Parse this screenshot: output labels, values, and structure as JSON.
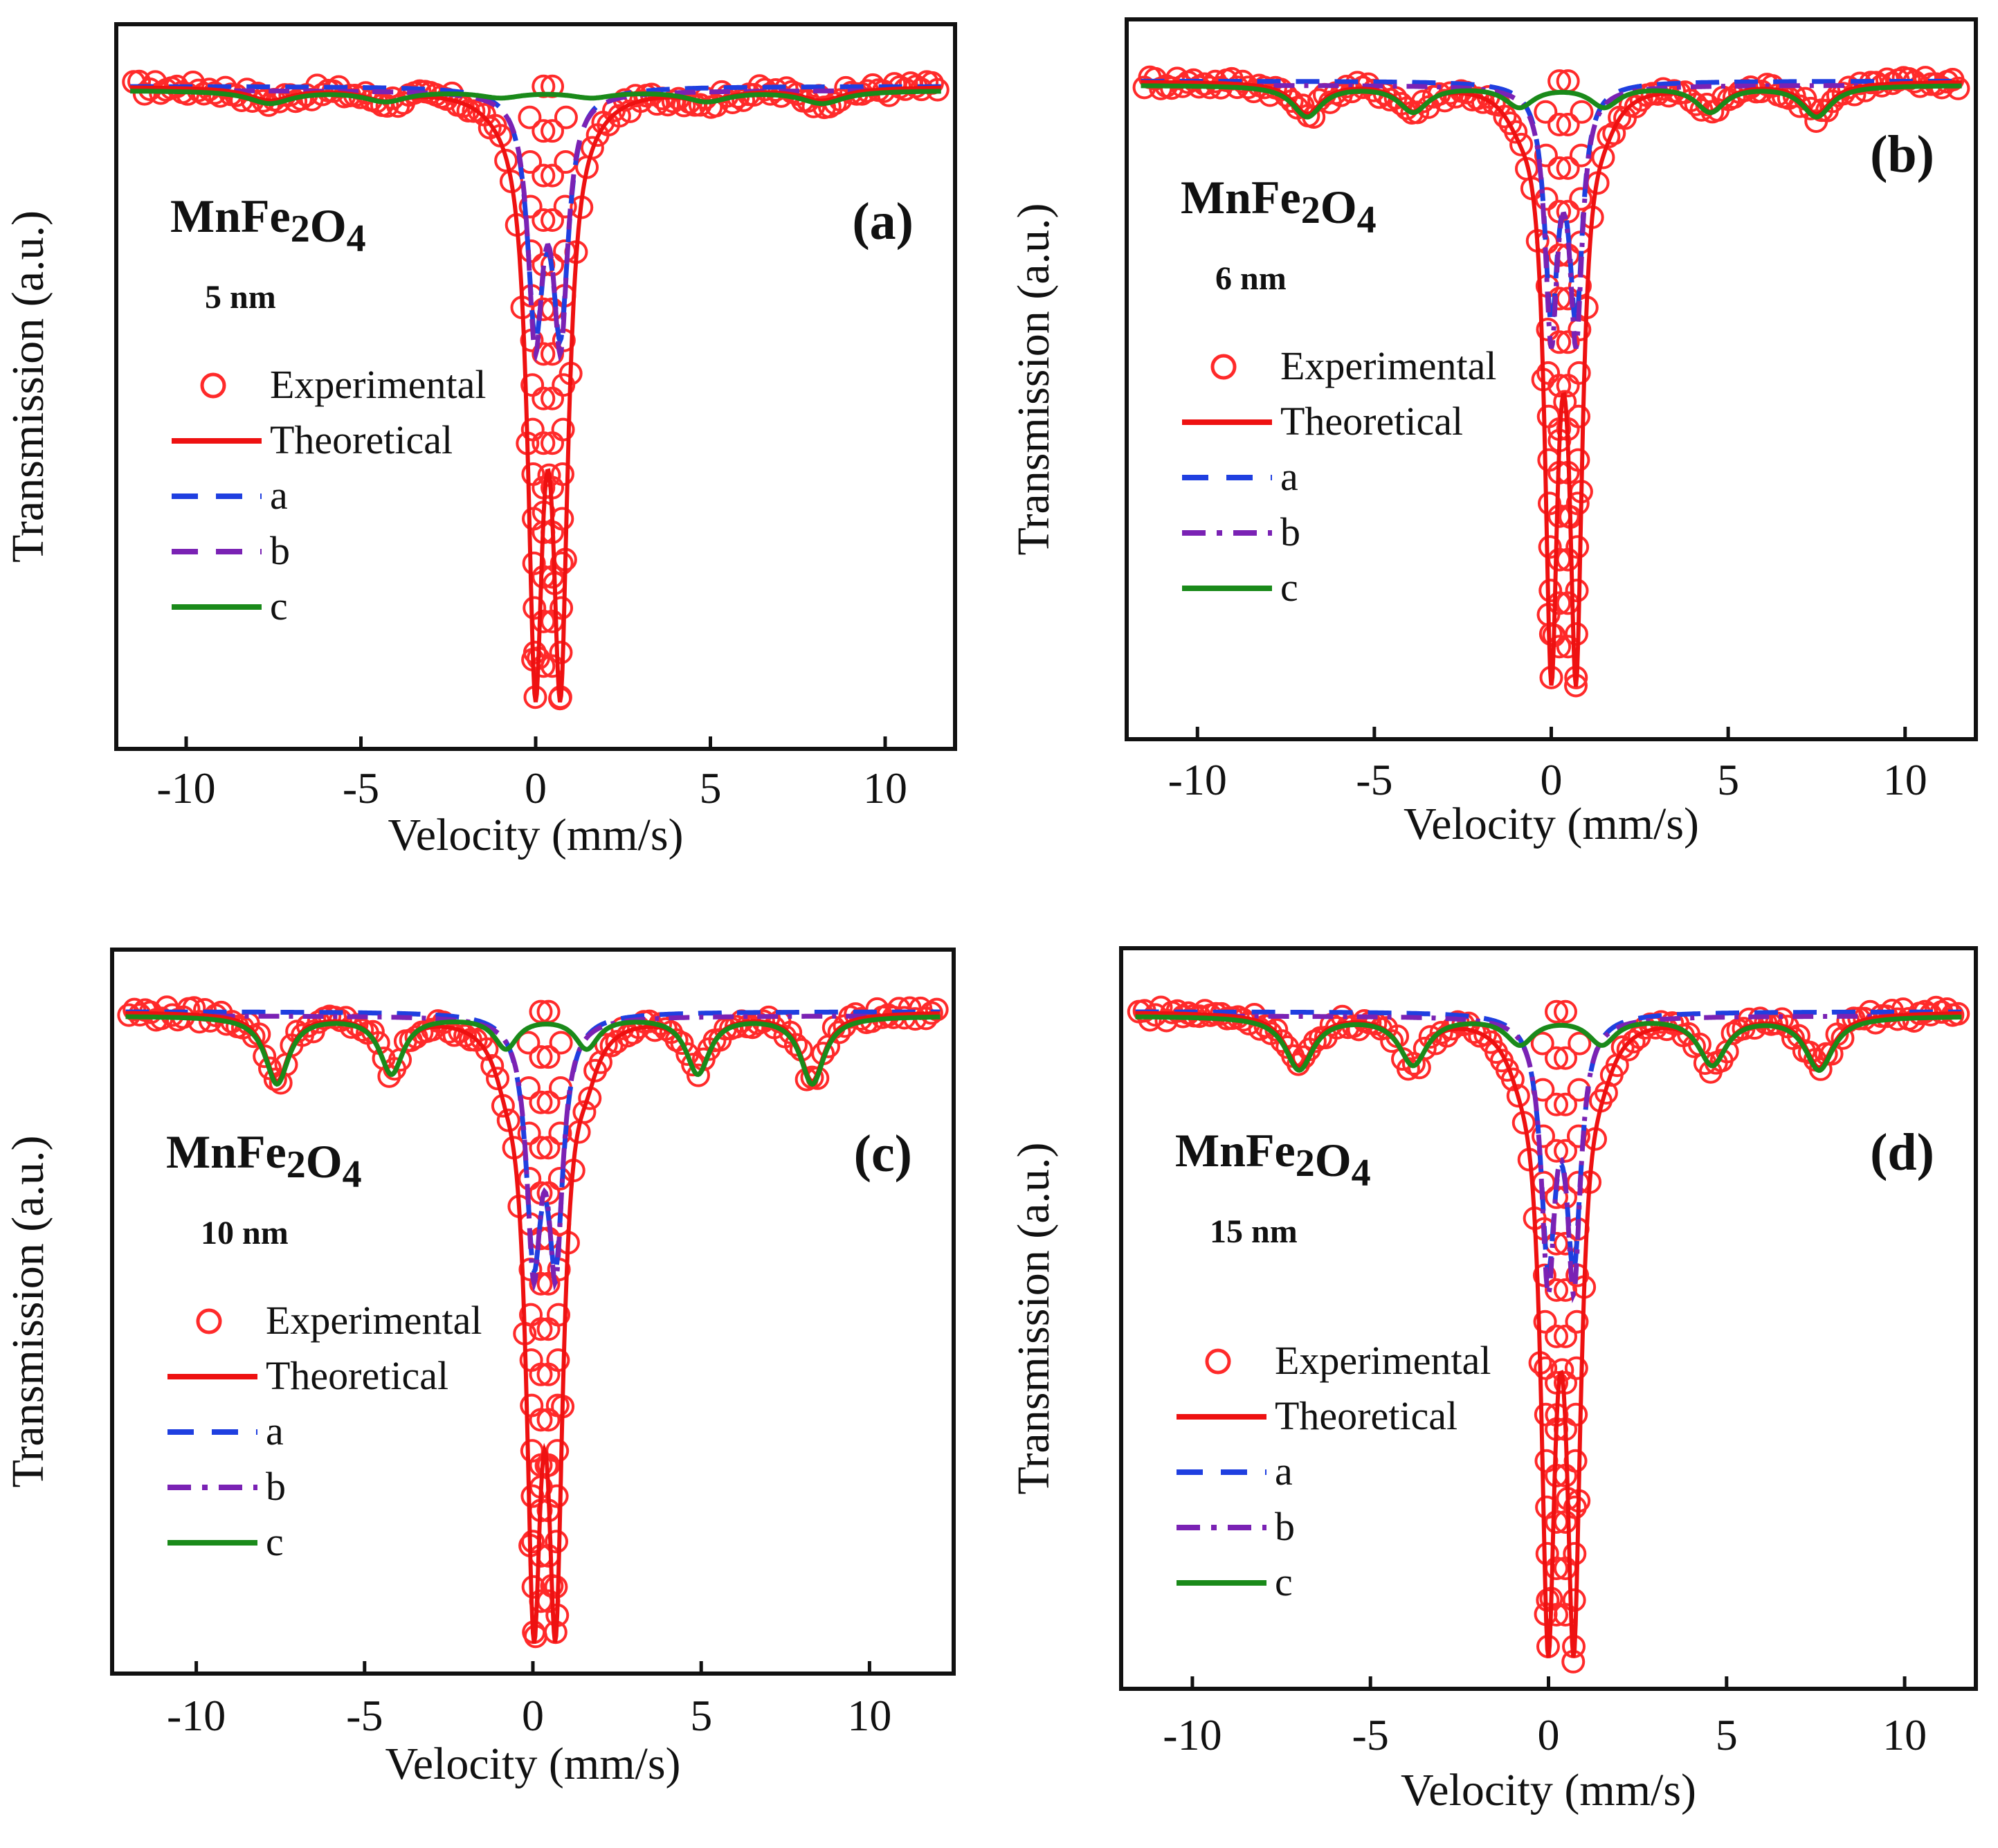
{
  "figure": {
    "colors": {
      "experimental": "#ff2a2a",
      "theoretical": "#ee1111",
      "a": "#1f3fe0",
      "b": "#7a22b4",
      "c": "#1a8a1a",
      "axes": "#111111"
    }
  },
  "chart_data": [
    {
      "type": "line",
      "panel": "(a)",
      "sample": "MnFe2O4",
      "size_label": "5 nm",
      "xlabel": "Velocity (mm/s)",
      "ylabel": "Transmission (a.u.)",
      "xlim": [
        -12,
        12
      ],
      "ylim": [
        0.34,
        1.04
      ],
      "xticks": [
        -10,
        -5,
        0,
        5,
        10
      ],
      "xtick_labels": [
        "-10",
        "-5",
        "0",
        "5",
        "10"
      ],
      "legend": {
        "placement": "left",
        "entries": [
          {
            "key": "exp",
            "label": "Experimental",
            "style": "circle"
          },
          {
            "key": "theo",
            "label": "Theoretical",
            "style": "solid"
          },
          {
            "key": "a",
            "label": "a",
            "style": "dash"
          },
          {
            "key": "b",
            "label": "b",
            "style": "dash"
          },
          {
            "key": "c",
            "label": "c",
            "style": "solid"
          }
        ]
      },
      "components": {
        "a": {
          "type": "doublet",
          "center": 0.35,
          "split": 0.72,
          "width": 0.55,
          "depth": 0.32
        },
        "b": {
          "type": "doublet",
          "center": 0.35,
          "split": 0.72,
          "width": 0.5,
          "depth": 0.3
        },
        "c": {
          "type": "sextet",
          "center": 0.3,
          "lines": [
            -7.6,
            -4.3,
            -1.0,
            1.6,
            4.9,
            8.2
          ],
          "width": 1.5,
          "depths": [
            0.012,
            0.01,
            0.006,
            0.006,
            0.01,
            0.012
          ]
        }
      },
      "theoretical_min": 0.39,
      "experimental_points_range": [
        -11.5,
        11.5
      ],
      "experimental_points_count": 150
    },
    {
      "type": "line",
      "panel": "(b)",
      "sample": "MnFe2O4",
      "size_label": "6 nm",
      "xlabel": "Velocity (mm/s)",
      "ylabel": "Transmission (a.u.)",
      "xlim": [
        -12,
        12
      ],
      "ylim": [
        0.34,
        1.04
      ],
      "xticks": [
        -10,
        -5,
        0,
        5,
        10
      ],
      "xtick_labels": [
        "-10",
        "-5",
        "0",
        "5",
        "10"
      ],
      "legend": {
        "placement": "left",
        "entries": [
          {
            "key": "exp",
            "label": "Experimental",
            "style": "circle"
          },
          {
            "key": "theo",
            "label": "Theoretical",
            "style": "solid"
          },
          {
            "key": "a",
            "label": "a",
            "style": "dash"
          },
          {
            "key": "b",
            "label": "b",
            "style": "dashdot"
          },
          {
            "key": "c",
            "label": "c",
            "style": "solid"
          }
        ]
      },
      "components": {
        "a": {
          "type": "doublet",
          "center": 0.35,
          "split": 0.7,
          "width": 0.45,
          "depth": 0.34
        },
        "b": {
          "type": "doublet",
          "center": 0.35,
          "split": 0.7,
          "width": 0.42,
          "depth": 0.33
        },
        "c": {
          "type": "sextet",
          "center": 0.3,
          "lines": [
            -6.9,
            -3.9,
            -0.9,
            1.5,
            4.5,
            7.5
          ],
          "width": 1.0,
          "depths": [
            0.03,
            0.025,
            0.02,
            0.02,
            0.025,
            0.03
          ]
        }
      },
      "theoretical_min": 0.4,
      "experimental_points_range": [
        -11.5,
        11.5
      ],
      "experimental_points_count": 150
    },
    {
      "type": "line",
      "panel": "(c)",
      "sample": "MnFe2O4",
      "size_label": "10 nm",
      "xlabel": "Velocity (mm/s)",
      "ylabel": "Transmission (a.u.)",
      "xlim": [
        -12.5,
        12.5
      ],
      "ylim": [
        0.34,
        1.04
      ],
      "xticks": [
        -10,
        -5,
        0,
        5,
        10
      ],
      "xtick_labels": [
        "-10",
        "-5",
        "0",
        "5",
        "10"
      ],
      "legend": {
        "placement": "left",
        "entries": [
          {
            "key": "exp",
            "label": "Experimental",
            "style": "circle"
          },
          {
            "key": "theo",
            "label": "Theoretical",
            "style": "solid"
          },
          {
            "key": "a",
            "label": "a",
            "style": "dash"
          },
          {
            "key": "b",
            "label": "b",
            "style": "dashdot"
          },
          {
            "key": "c",
            "label": "c",
            "style": "solid"
          }
        ]
      },
      "components": {
        "a": {
          "type": "doublet",
          "center": 0.35,
          "split": 0.65,
          "width": 0.55,
          "depth": 0.3
        },
        "b": {
          "type": "doublet",
          "center": 0.35,
          "split": 0.65,
          "width": 0.5,
          "depth": 0.28
        },
        "c": {
          "type": "sextet",
          "center": 0.3,
          "lines": [
            -7.6,
            -4.2,
            -0.8,
            1.6,
            4.9,
            8.3
          ],
          "width": 0.85,
          "depths": [
            0.065,
            0.055,
            0.03,
            0.03,
            0.055,
            0.065
          ]
        }
      },
      "theoretical_min": 0.38,
      "experimental_points_range": [
        -12,
        12
      ],
      "experimental_points_count": 150
    },
    {
      "type": "line",
      "panel": "(d)",
      "sample": "MnFe2O4",
      "size_label": "15 nm",
      "xlabel": "Velocity (mm/s)",
      "ylabel": "Transmission (a.u.)",
      "xlim": [
        -12,
        12
      ],
      "ylim": [
        0.34,
        1.04
      ],
      "xticks": [
        -10,
        -5,
        0,
        5,
        10
      ],
      "xtick_labels": [
        "-10",
        "-5",
        "0",
        "5",
        "10"
      ],
      "legend": {
        "placement": "left",
        "entries": [
          {
            "key": "exp",
            "label": "Experimental",
            "style": "circle"
          },
          {
            "key": "theo",
            "label": "Theoretical",
            "style": "solid"
          },
          {
            "key": "a",
            "label": "a",
            "style": "dash"
          },
          {
            "key": "b",
            "label": "b",
            "style": "dashdot"
          },
          {
            "key": "c",
            "label": "c",
            "style": "solid"
          }
        ]
      },
      "components": {
        "a": {
          "type": "doublet",
          "center": 0.35,
          "split": 0.72,
          "width": 0.5,
          "depth": 0.32
        },
        "b": {
          "type": "doublet",
          "center": 0.35,
          "split": 0.72,
          "width": 0.45,
          "depth": 0.31
        },
        "c": {
          "type": "sextet",
          "center": 0.3,
          "lines": [
            -7.0,
            -3.8,
            -0.8,
            1.5,
            4.6,
            7.6
          ],
          "width": 0.95,
          "depths": [
            0.05,
            0.045,
            0.025,
            0.025,
            0.045,
            0.05
          ]
        }
      },
      "theoretical_min": 0.38,
      "experimental_points_range": [
        -11.5,
        11.5
      ],
      "experimental_points_count": 150
    }
  ]
}
